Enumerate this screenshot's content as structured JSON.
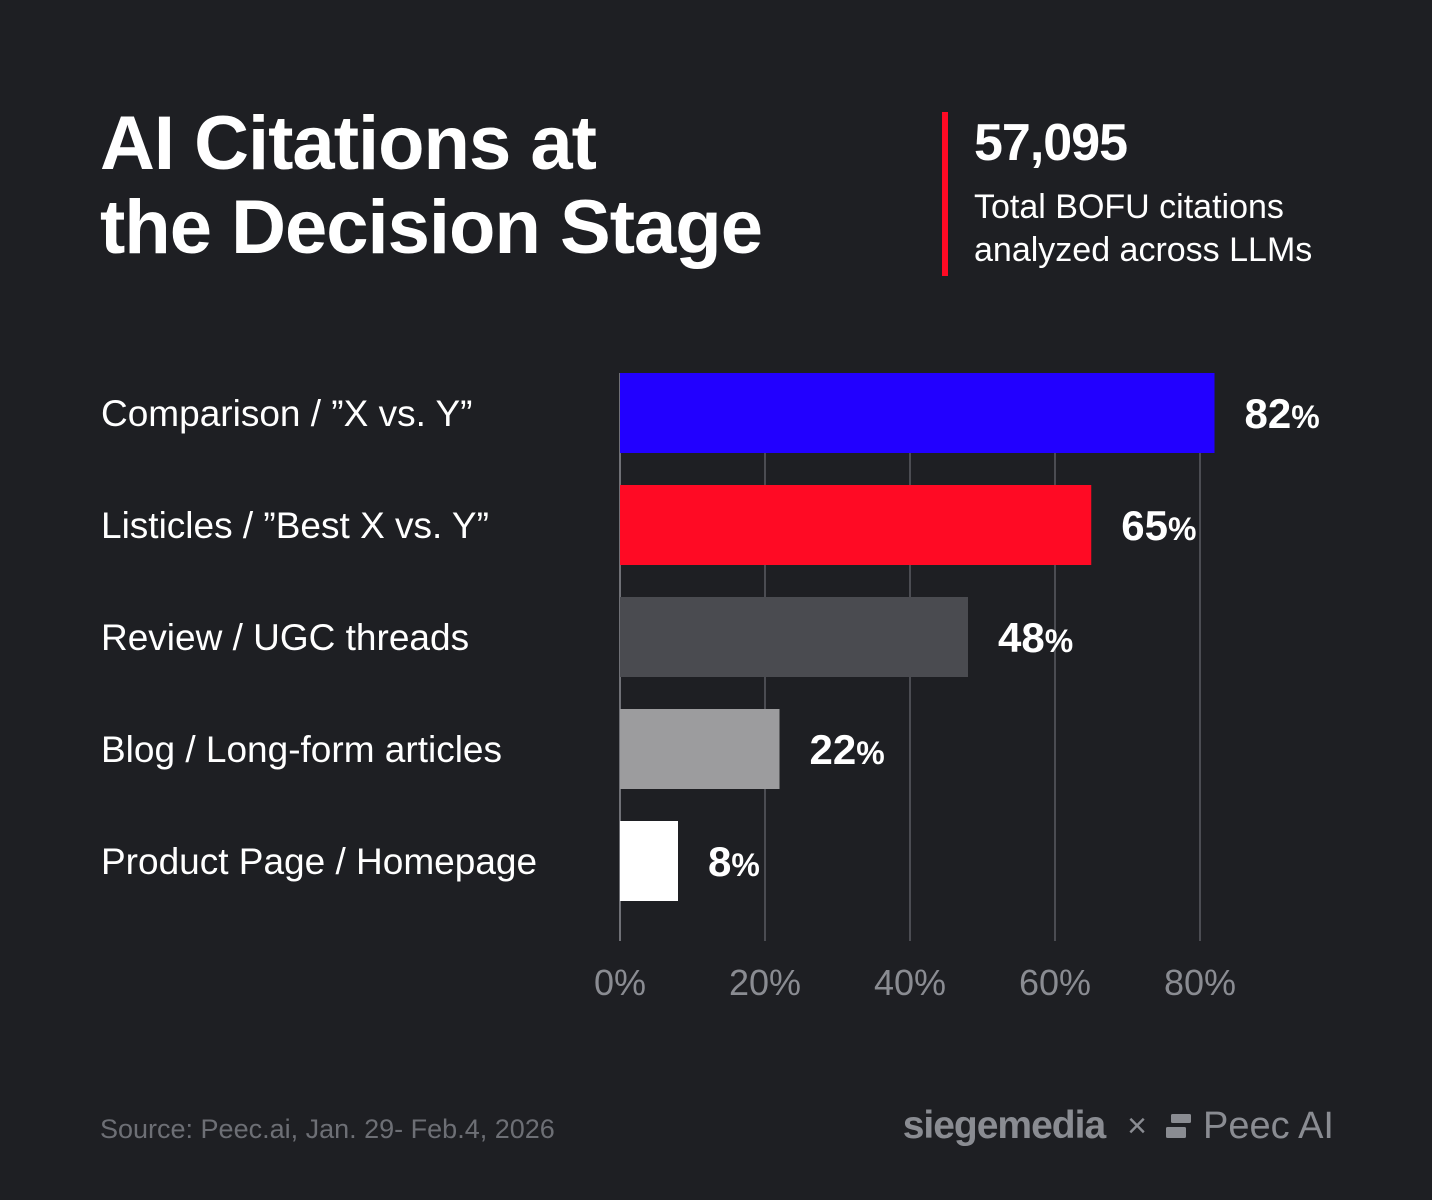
{
  "header": {
    "title_line1": "AI Citations at",
    "title_line2": "the Decision Stage"
  },
  "stat": {
    "value": "57,095",
    "desc_line1": "Total BOFU citations",
    "desc_line2": "analyzed across LLMs",
    "accent": "#ff0a24"
  },
  "chart_data": {
    "type": "bar",
    "orientation": "horizontal",
    "categories": [
      "Comparison / ”X vs. Y”",
      "Listicles / ”Best X vs. Y”",
      "Review / UGC threads",
      "Blog / Long-form articles",
      "Product Page / Homepage"
    ],
    "values": [
      82,
      65,
      48,
      22,
      8
    ],
    "value_labels": [
      "82",
      "65",
      "48",
      "22",
      "8"
    ],
    "value_suffix": "%",
    "colors": [
      "#2200ff",
      "#ff0a24",
      "#4a4b50",
      "#9c9c9e",
      "#ffffff"
    ],
    "xlim": [
      0,
      80
    ],
    "xticks": [
      0,
      20,
      40,
      60,
      80
    ],
    "xtick_labels": [
      "0%",
      "20%",
      "40%",
      "60%",
      "80%"
    ],
    "grid": true
  },
  "footer": {
    "source": "Source: Peec.ai, Jan. 29- Feb.4, 2026",
    "logo_siege": "siegemedia",
    "logo_times": "×",
    "logo_peec": "Peec AI"
  }
}
